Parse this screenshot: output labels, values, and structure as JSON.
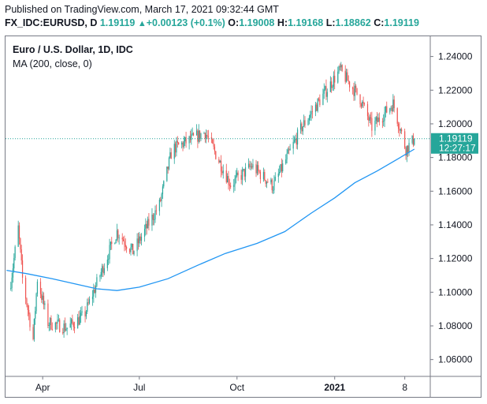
{
  "header": {
    "published": "Published on TradingView.com, March 17, 2021 09:32:44 GMT",
    "symbol": "FX_IDC:EURUSD, D",
    "last": "1.19119",
    "change": "+0.00123 (+0.1%)",
    "o_label": "O:",
    "o_value": "1.19008",
    "h_label": "H:",
    "h_value": "1.19168",
    "l_label": "L:",
    "l_value": "1.18862",
    "c_label": "C:",
    "c_value": "1.19119"
  },
  "legend": {
    "instrument": "Euro / U.S. Dollar, 1D, IDC",
    "indicator": "MA (200, close, 0)"
  },
  "price_tag": {
    "price": "1.19119",
    "countdown": "12:27:17"
  },
  "colors": {
    "up": "#26a69a",
    "down": "#ef5350",
    "ma": "#2196f3",
    "axis": "#131722",
    "dotted": "#26a69a"
  },
  "chart_data": {
    "type": "candlestick",
    "x_ticks": [
      "Apr",
      "Jul",
      "Oct",
      "2021",
      "8"
    ],
    "y_ticks": [
      "1.06000",
      "1.08000",
      "1.10000",
      "1.12000",
      "1.14000",
      "1.16000",
      "1.18000",
      "1.20000",
      "1.22000",
      "1.24000"
    ],
    "ylim": [
      1.05,
      1.252
    ],
    "last_price": 1.19119,
    "price_path": [
      {
        "x": "2020-03-01",
        "y": 1.102
      },
      {
        "x": "2020-03-09",
        "y": 1.138
      },
      {
        "x": "2020-03-13",
        "y": 1.108
      },
      {
        "x": "2020-03-23",
        "y": 1.072
      },
      {
        "x": "2020-03-27",
        "y": 1.108
      },
      {
        "x": "2020-04-06",
        "y": 1.082
      },
      {
        "x": "2020-04-24",
        "y": 1.079
      },
      {
        "x": "2020-05-10",
        "y": 1.086
      },
      {
        "x": "2020-06-10",
        "y": 1.136
      },
      {
        "x": "2020-06-25",
        "y": 1.124
      },
      {
        "x": "2020-07-20",
        "y": 1.152
      },
      {
        "x": "2020-08-01",
        "y": 1.185
      },
      {
        "x": "2020-09-01",
        "y": 1.195
      },
      {
        "x": "2020-09-25",
        "y": 1.164
      },
      {
        "x": "2020-10-15",
        "y": 1.175
      },
      {
        "x": "2020-11-04",
        "y": 1.163
      },
      {
        "x": "2020-12-01",
        "y": 1.198
      },
      {
        "x": "2021-01-06",
        "y": 1.232
      },
      {
        "x": "2021-01-25",
        "y": 1.215
      },
      {
        "x": "2021-02-05",
        "y": 1.198
      },
      {
        "x": "2021-02-25",
        "y": 1.212
      },
      {
        "x": "2021-03-09",
        "y": 1.185
      },
      {
        "x": "2021-03-17",
        "y": 1.191
      }
    ],
    "ma200": [
      {
        "x": "2020-02-27",
        "y": 1.113
      },
      {
        "x": "2020-03-17",
        "y": 1.111
      },
      {
        "x": "2020-04-10",
        "y": 1.108
      },
      {
        "x": "2020-05-01",
        "y": 1.105
      },
      {
        "x": "2020-05-22",
        "y": 1.102
      },
      {
        "x": "2020-06-10",
        "y": 1.101
      },
      {
        "x": "2020-07-01",
        "y": 1.103
      },
      {
        "x": "2020-07-28",
        "y": 1.108
      },
      {
        "x": "2020-08-25",
        "y": 1.116
      },
      {
        "x": "2020-09-20",
        "y": 1.123
      },
      {
        "x": "2020-10-20",
        "y": 1.129
      },
      {
        "x": "2020-11-15",
        "y": 1.136
      },
      {
        "x": "2020-12-10",
        "y": 1.147
      },
      {
        "x": "2021-01-01",
        "y": 1.156
      },
      {
        "x": "2021-01-20",
        "y": 1.165
      },
      {
        "x": "2021-02-10",
        "y": 1.172
      },
      {
        "x": "2021-03-01",
        "y": 1.179
      },
      {
        "x": "2021-03-17",
        "y": 1.185
      }
    ]
  }
}
